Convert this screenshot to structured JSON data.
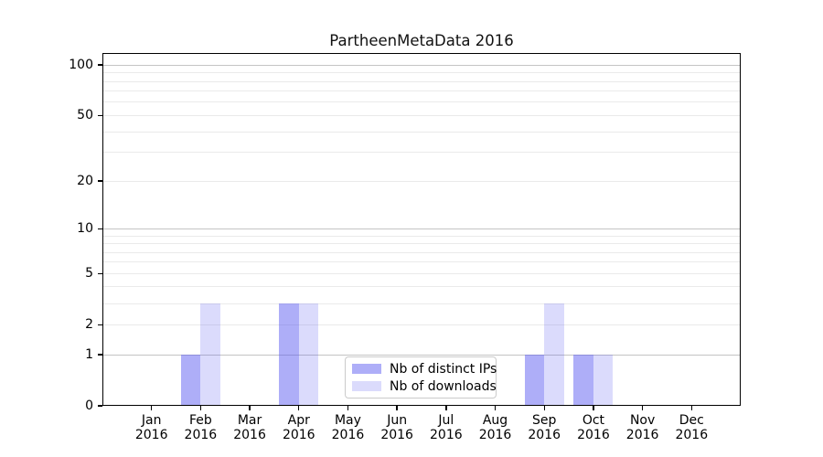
{
  "chart_data": {
    "type": "bar",
    "title": "PartheenMetaData 2016",
    "categories": [
      "Jan",
      "Feb",
      "Mar",
      "Apr",
      "May",
      "Jun",
      "Jul",
      "Aug",
      "Sep",
      "Oct",
      "Nov",
      "Dec"
    ],
    "year_label": "2016",
    "series": [
      {
        "name": "Nb of distinct IPs",
        "color": "rgba(85,85,240,0.48)",
        "values": [
          0,
          1,
          0,
          3,
          0,
          0,
          0,
          0,
          1,
          1,
          0,
          0
        ]
      },
      {
        "name": "Nb of downloads",
        "color": "rgba(85,85,240,0.21)",
        "values": [
          0,
          3,
          0,
          3,
          0,
          0,
          0,
          0,
          3,
          1,
          0,
          0
        ]
      }
    ],
    "y_ticks": [
      0,
      1,
      2,
      5,
      10,
      20,
      50,
      100
    ],
    "y_scale": "log-like: position = log10(1+value)",
    "ylim": [
      0,
      115
    ],
    "grid": {
      "minor_values": [
        2,
        3,
        4,
        5,
        6,
        7,
        8,
        9,
        20,
        30,
        40,
        50,
        60,
        70,
        80,
        90
      ],
      "major_values": [
        1,
        10,
        100
      ],
      "minor_color": "#eaeaea",
      "major_color": "#c4c4c4"
    },
    "legend_position": "lower center (inside plot)"
  }
}
